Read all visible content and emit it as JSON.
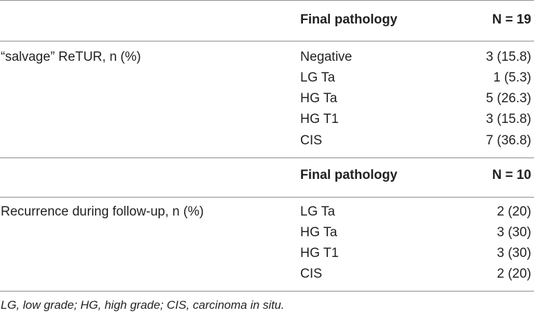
{
  "sections": [
    {
      "header": {
        "pathology": "Final pathology",
        "n": "N = 19"
      },
      "row_label": "“salvage” ReTUR, n (%)",
      "rows": [
        {
          "pathology": "Negative",
          "value": "3 (15.8)"
        },
        {
          "pathology": "LG Ta",
          "value": "1 (5.3)"
        },
        {
          "pathology": "HG Ta",
          "value": "5 (26.3)"
        },
        {
          "pathology": "HG T1",
          "value": "3 (15.8)"
        },
        {
          "pathology": "CIS",
          "value": "7 (36.8)"
        }
      ]
    },
    {
      "header": {
        "pathology": "Final pathology",
        "n": "N = 10"
      },
      "row_label": "Recurrence during follow-up, n (%)",
      "rows": [
        {
          "pathology": "LG Ta",
          "value": "2 (20)"
        },
        {
          "pathology": "HG Ta",
          "value": "3 (30)"
        },
        {
          "pathology": "HG T1",
          "value": "3 (30)"
        },
        {
          "pathology": "CIS",
          "value": "2 (20)"
        }
      ]
    }
  ],
  "footnote": "LG, low grade; HG, high grade; CIS, carcinoma in situ."
}
